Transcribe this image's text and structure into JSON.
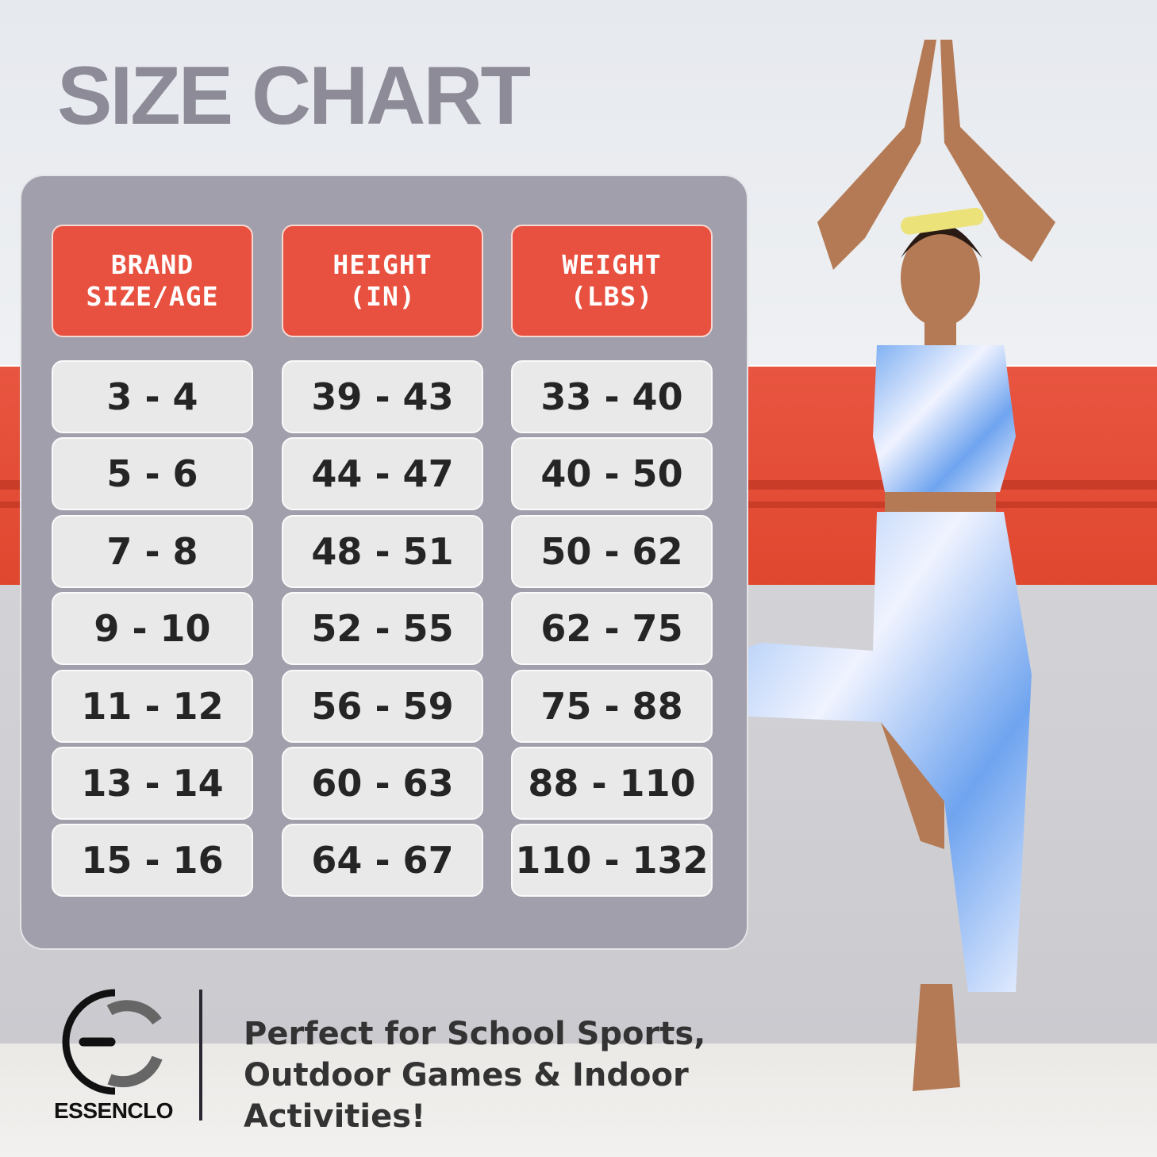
{
  "title": "SIZE CHART",
  "table": {
    "headers": [
      "BRAND\nSIZE/AGE",
      "HEIGHT\n(IN)",
      "WEIGHT\n(LBS)"
    ],
    "rows": [
      [
        "3 - 4",
        "39 - 43",
        "33 - 40"
      ],
      [
        "5 - 6",
        "44 - 47",
        "40 - 50"
      ],
      [
        "7 - 8",
        "48 - 51",
        "50 - 62"
      ],
      [
        "9 - 10",
        "52 - 55",
        "62 - 75"
      ],
      [
        "11 - 12",
        "56 - 59",
        "75 - 88"
      ],
      [
        "13 - 14",
        "60 - 63",
        "88 - 110"
      ],
      [
        "15 - 16",
        "64 - 67",
        "110 - 132"
      ]
    ]
  },
  "brand": {
    "name": "ESSENCLO"
  },
  "tagline": "Perfect for School Sports, Outdoor Games & Indoor Activities!",
  "colors": {
    "header": "#e8513f",
    "panel": "#a19fab",
    "title": "#8d8b97",
    "cell": "#e9e9e9"
  }
}
